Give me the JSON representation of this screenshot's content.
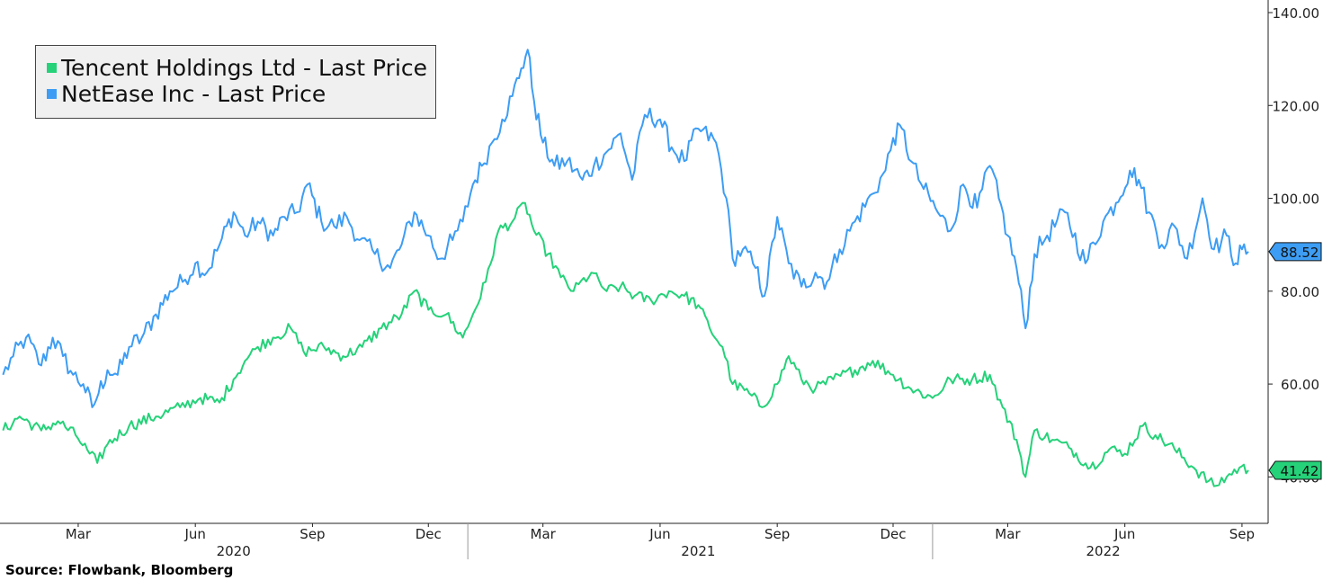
{
  "chart_data": {
    "type": "line",
    "source": "Source: Flowbank, Bloomberg",
    "y_axis": {
      "side": "right",
      "ylim": [
        30,
        140
      ],
      "ticks": [
        "140.00",
        "120.00",
        "100.00",
        "80.00",
        "60.00",
        "40.00"
      ]
    },
    "x_axis": {
      "month_ticks": [
        {
          "label": "Mar",
          "date": "2020-03-01"
        },
        {
          "label": "Jun",
          "date": "2020-06-01"
        },
        {
          "label": "Sep",
          "date": "2020-09-01"
        },
        {
          "label": "Dec",
          "date": "2020-12-01"
        },
        {
          "label": "Mar",
          "date": "2021-03-01"
        },
        {
          "label": "Jun",
          "date": "2021-06-01"
        },
        {
          "label": "Sep",
          "date": "2021-09-01"
        },
        {
          "label": "Dec",
          "date": "2021-12-01"
        },
        {
          "label": "Mar",
          "date": "2022-03-01"
        },
        {
          "label": "Jun",
          "date": "2022-06-01"
        },
        {
          "label": "Sep",
          "date": "2022-09-01"
        }
      ],
      "year_labels": [
        {
          "label": "2020",
          "date": "2020-07-01"
        },
        {
          "label": "2021",
          "date": "2021-07-01"
        },
        {
          "label": "2022",
          "date": "2022-05-15"
        }
      ],
      "year_separators": [
        "2021-01-01",
        "2022-01-01"
      ]
    },
    "series": [
      {
        "name": "NetEase Inc - Last Price",
        "color": "#3d9df4",
        "last_value": "88.52",
        "points": [
          [
            "2020-01-02",
            62
          ],
          [
            "2020-01-10",
            66
          ],
          [
            "2020-01-20",
            70
          ],
          [
            "2020-02-01",
            64
          ],
          [
            "2020-02-10",
            70
          ],
          [
            "2020-02-18",
            66
          ],
          [
            "2020-02-26",
            62
          ],
          [
            "2020-03-05",
            60
          ],
          [
            "2020-03-12",
            55
          ],
          [
            "2020-03-17",
            58
          ],
          [
            "2020-03-24",
            63
          ],
          [
            "2020-04-01",
            62
          ],
          [
            "2020-04-10",
            68
          ],
          [
            "2020-04-20",
            70
          ],
          [
            "2020-05-01",
            75
          ],
          [
            "2020-05-12",
            80
          ],
          [
            "2020-05-22",
            82
          ],
          [
            "2020-06-01",
            86
          ],
          [
            "2020-06-10",
            84
          ],
          [
            "2020-06-20",
            90
          ],
          [
            "2020-07-01",
            97
          ],
          [
            "2020-07-10",
            92
          ],
          [
            "2020-07-20",
            95
          ],
          [
            "2020-08-01",
            92
          ],
          [
            "2020-08-10",
            96
          ],
          [
            "2020-08-20",
            97
          ],
          [
            "2020-08-28",
            103
          ],
          [
            "2020-09-08",
            95
          ],
          [
            "2020-09-18",
            94
          ],
          [
            "2020-09-28",
            96
          ],
          [
            "2020-10-08",
            91
          ],
          [
            "2020-10-20",
            88
          ],
          [
            "2020-11-01",
            85
          ],
          [
            "2020-11-10",
            90
          ],
          [
            "2020-11-20",
            97
          ],
          [
            "2020-12-01",
            92
          ],
          [
            "2020-12-10",
            87
          ],
          [
            "2020-12-20",
            91
          ],
          [
            "2020-12-28",
            95
          ],
          [
            "2021-01-05",
            103
          ],
          [
            "2021-01-12",
            107
          ],
          [
            "2021-01-20",
            112
          ],
          [
            "2021-01-28",
            117
          ],
          [
            "2021-02-05",
            122
          ],
          [
            "2021-02-12",
            128
          ],
          [
            "2021-02-17",
            132
          ],
          [
            "2021-02-22",
            121
          ],
          [
            "2021-03-01",
            112
          ],
          [
            "2021-03-10",
            107
          ],
          [
            "2021-03-20",
            108
          ],
          [
            "2021-04-01",
            104
          ],
          [
            "2021-04-10",
            107
          ],
          [
            "2021-04-20",
            110
          ],
          [
            "2021-05-01",
            114
          ],
          [
            "2021-05-10",
            104
          ],
          [
            "2021-05-20",
            118
          ],
          [
            "2021-06-01",
            117
          ],
          [
            "2021-06-10",
            111
          ],
          [
            "2021-06-20",
            108
          ],
          [
            "2021-07-01",
            115
          ],
          [
            "2021-07-15",
            112
          ],
          [
            "2021-07-23",
            100
          ],
          [
            "2021-07-28",
            87
          ],
          [
            "2021-08-05",
            89
          ],
          [
            "2021-08-15",
            85
          ],
          [
            "2021-08-22",
            79
          ],
          [
            "2021-09-01",
            96
          ],
          [
            "2021-09-10",
            86
          ],
          [
            "2021-09-20",
            81
          ],
          [
            "2021-10-01",
            84
          ],
          [
            "2021-10-10",
            82
          ],
          [
            "2021-10-20",
            89
          ],
          [
            "2021-11-01",
            95
          ],
          [
            "2021-11-15",
            101
          ],
          [
            "2021-11-25",
            106
          ],
          [
            "2021-12-01",
            113
          ],
          [
            "2021-12-08",
            115
          ],
          [
            "2021-12-15",
            108
          ],
          [
            "2021-12-25",
            102
          ],
          [
            "2022-01-05",
            97
          ],
          [
            "2022-01-15",
            93
          ],
          [
            "2022-01-25",
            103
          ],
          [
            "2022-02-05",
            98
          ],
          [
            "2022-02-15",
            107
          ],
          [
            "2022-02-22",
            100
          ],
          [
            "2022-03-01",
            92
          ],
          [
            "2022-03-08",
            85
          ],
          [
            "2022-03-15",
            72
          ],
          [
            "2022-03-22",
            88
          ],
          [
            "2022-04-01",
            92
          ],
          [
            "2022-04-15",
            97
          ],
          [
            "2022-05-01",
            86
          ],
          [
            "2022-05-15",
            95
          ],
          [
            "2022-05-25",
            99
          ],
          [
            "2022-06-05",
            106
          ],
          [
            "2022-06-12",
            104
          ],
          [
            "2022-06-20",
            97
          ],
          [
            "2022-06-30",
            90
          ],
          [
            "2022-07-10",
            94
          ],
          [
            "2022-07-20",
            87
          ],
          [
            "2022-08-01",
            100
          ],
          [
            "2022-08-10",
            89
          ],
          [
            "2022-08-20",
            92
          ],
          [
            "2022-08-27",
            86
          ],
          [
            "2022-09-01",
            89
          ],
          [
            "2022-09-06",
            88.52
          ]
        ]
      },
      {
        "name": "Tencent Holdings Ltd - Last Price",
        "color": "#25d279",
        "last_value": "41.42",
        "points": [
          [
            "2020-01-02",
            50
          ],
          [
            "2020-01-15",
            53
          ],
          [
            "2020-02-01",
            50
          ],
          [
            "2020-02-14",
            52
          ],
          [
            "2020-02-28",
            49
          ],
          [
            "2020-03-10",
            45
          ],
          [
            "2020-03-16",
            43
          ],
          [
            "2020-03-24",
            47
          ],
          [
            "2020-04-10",
            51
          ],
          [
            "2020-05-01",
            53
          ],
          [
            "2020-05-20",
            55
          ],
          [
            "2020-06-05",
            57
          ],
          [
            "2020-06-20",
            56
          ],
          [
            "2020-07-01",
            61
          ],
          [
            "2020-07-10",
            65
          ],
          [
            "2020-07-20",
            68
          ],
          [
            "2020-08-01",
            70
          ],
          [
            "2020-08-15",
            72
          ],
          [
            "2020-08-25",
            67
          ],
          [
            "2020-09-10",
            68
          ],
          [
            "2020-09-25",
            66
          ],
          [
            "2020-10-10",
            68
          ],
          [
            "2020-10-25",
            72
          ],
          [
            "2020-11-10",
            75
          ],
          [
            "2020-11-20",
            80
          ],
          [
            "2020-12-01",
            76
          ],
          [
            "2020-12-15",
            75
          ],
          [
            "2020-12-28",
            70
          ],
          [
            "2021-01-05",
            75
          ],
          [
            "2021-01-15",
            82
          ],
          [
            "2021-01-25",
            93
          ],
          [
            "2021-02-05",
            95
          ],
          [
            "2021-02-15",
            99
          ],
          [
            "2021-02-22",
            93
          ],
          [
            "2021-03-05",
            88
          ],
          [
            "2021-03-15",
            83
          ],
          [
            "2021-03-25",
            80
          ],
          [
            "2021-04-08",
            84
          ],
          [
            "2021-04-20",
            80
          ],
          [
            "2021-05-01",
            81
          ],
          [
            "2021-05-12",
            79
          ],
          [
            "2021-05-25",
            78
          ],
          [
            "2021-06-08",
            80
          ],
          [
            "2021-06-20",
            79
          ],
          [
            "2021-07-01",
            77
          ],
          [
            "2021-07-10",
            72
          ],
          [
            "2021-07-20",
            68
          ],
          [
            "2021-07-28",
            60
          ],
          [
            "2021-08-10",
            58
          ],
          [
            "2021-08-20",
            55
          ],
          [
            "2021-09-01",
            60
          ],
          [
            "2021-09-10",
            66
          ],
          [
            "2021-09-20",
            61
          ],
          [
            "2021-10-01",
            59
          ],
          [
            "2021-10-15",
            61
          ],
          [
            "2021-11-01",
            63
          ],
          [
            "2021-11-15",
            65
          ],
          [
            "2021-12-01",
            62
          ],
          [
            "2021-12-15",
            59
          ],
          [
            "2022-01-01",
            57
          ],
          [
            "2022-01-15",
            61
          ],
          [
            "2022-02-01",
            61
          ],
          [
            "2022-02-15",
            62
          ],
          [
            "2022-02-25",
            55
          ],
          [
            "2022-03-08",
            48
          ],
          [
            "2022-03-15",
            40
          ],
          [
            "2022-03-22",
            50
          ],
          [
            "2022-04-05",
            48
          ],
          [
            "2022-04-20",
            46
          ],
          [
            "2022-05-05",
            42
          ],
          [
            "2022-05-20",
            46
          ],
          [
            "2022-06-01",
            45
          ],
          [
            "2022-06-15",
            51
          ],
          [
            "2022-06-25",
            49
          ],
          [
            "2022-07-10",
            46
          ],
          [
            "2022-07-25",
            42
          ],
          [
            "2022-08-10",
            38
          ],
          [
            "2022-08-20",
            40
          ],
          [
            "2022-08-30",
            42
          ],
          [
            "2022-09-06",
            41.42
          ]
        ]
      }
    ]
  }
}
